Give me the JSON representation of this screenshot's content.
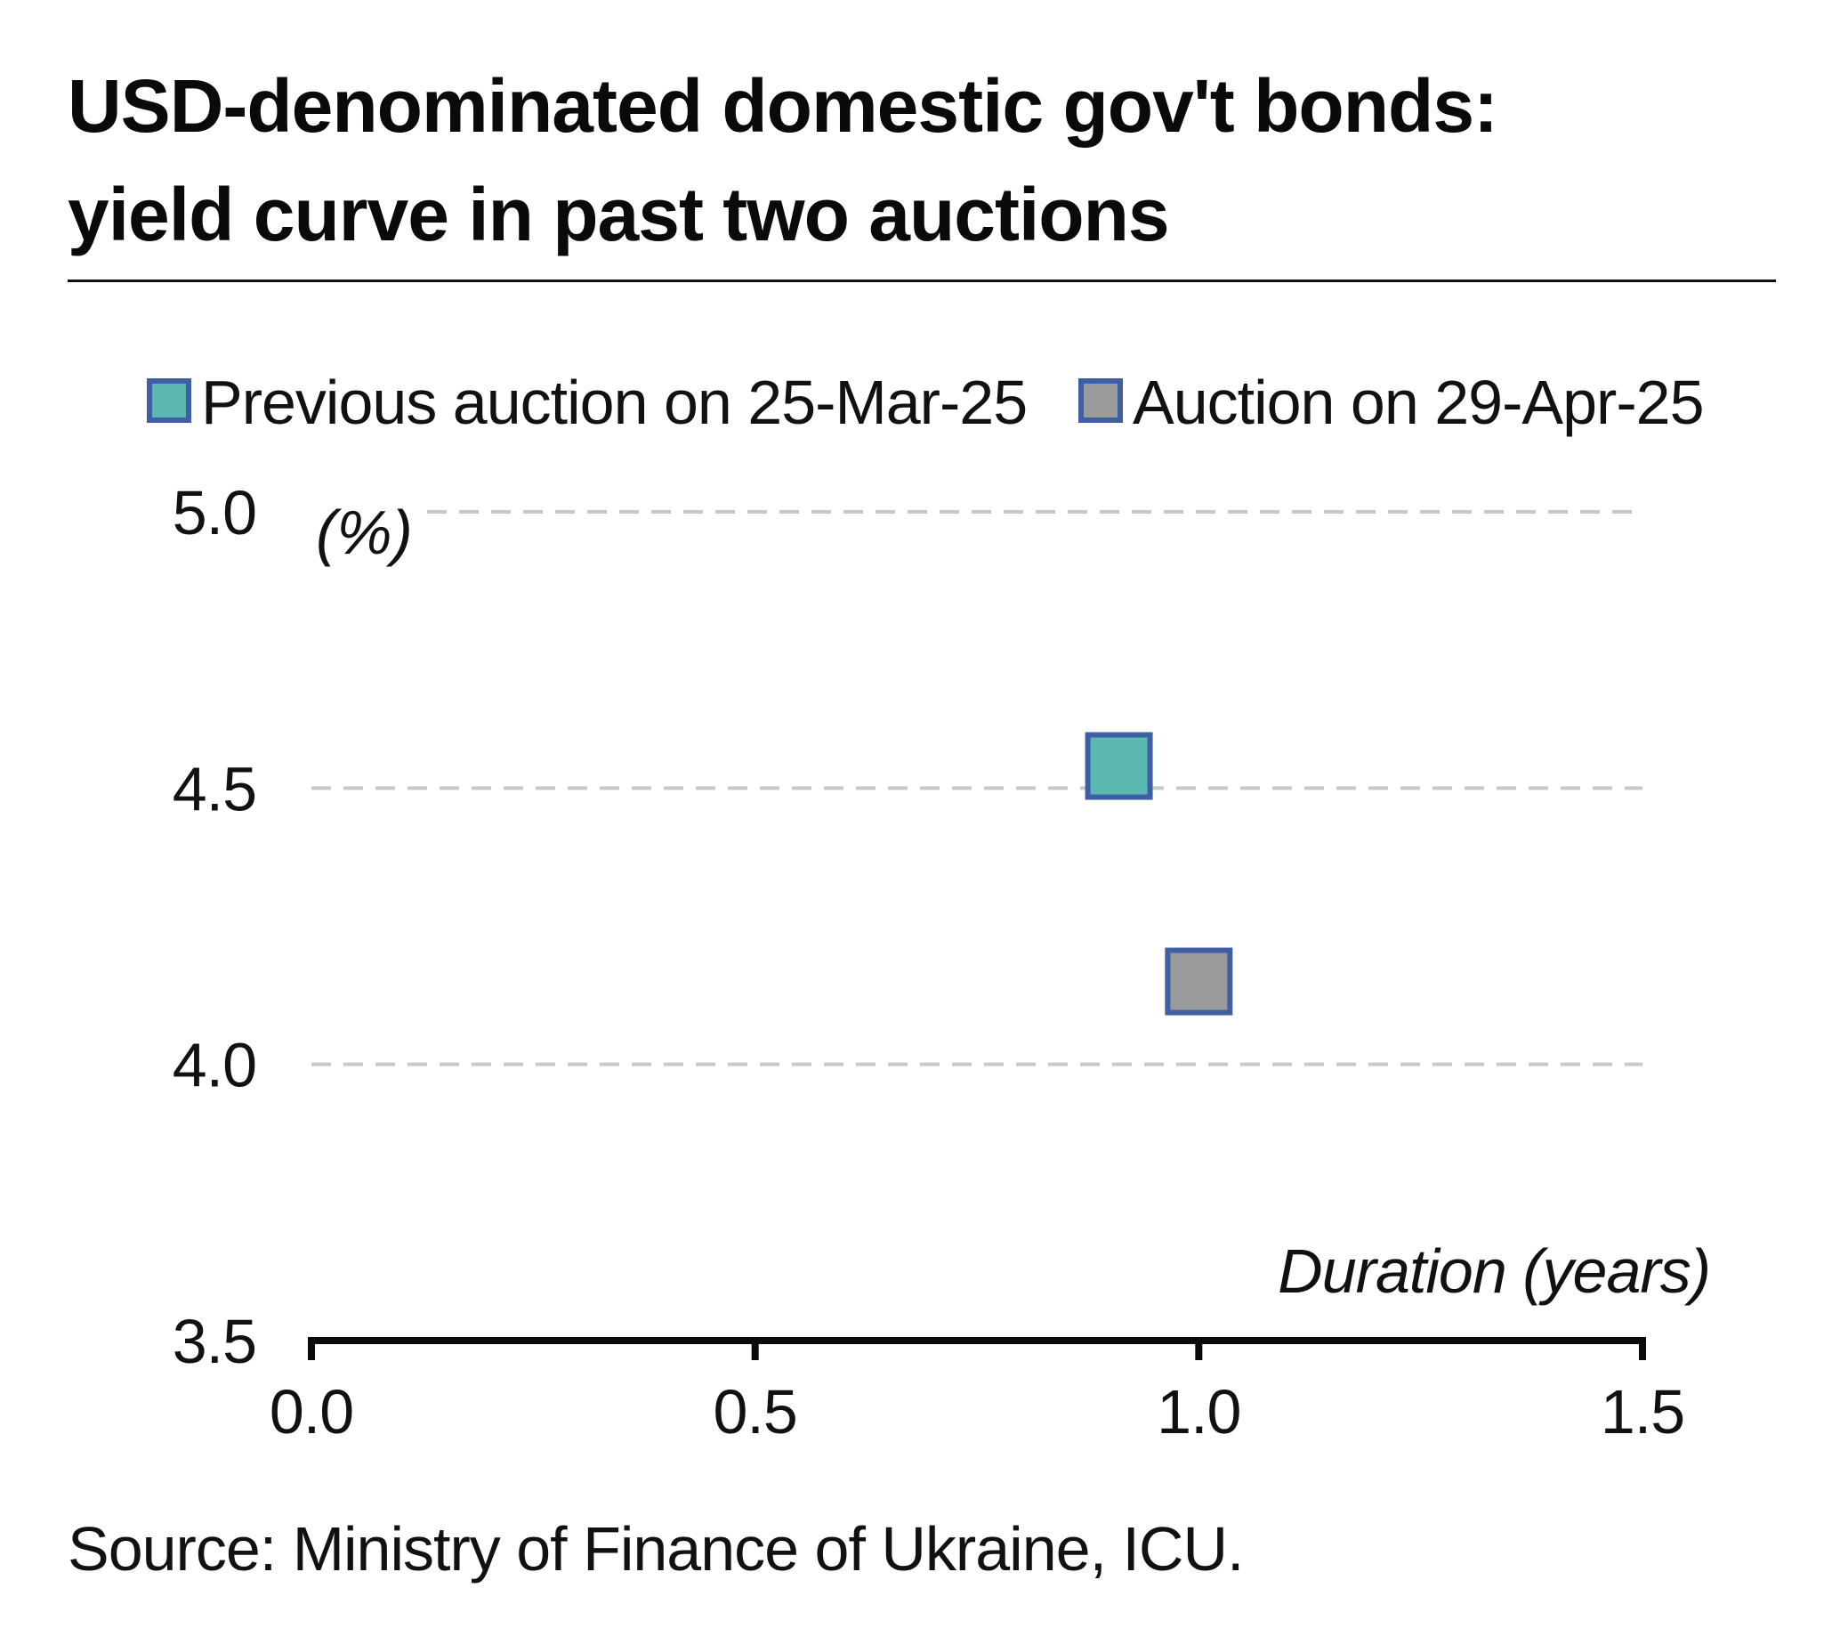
{
  "title_lines": [
    "USD-denominated domestic gov't bonds:",
    "yield curve in past two auctions"
  ],
  "source": "Source: Ministry of Finance of Ukraine, ICU.",
  "chart_data": {
    "type": "scatter",
    "xlabel": "Duration (years)",
    "ylabel": "(%)",
    "xlim": [
      0.0,
      1.5
    ],
    "ylim": [
      3.5,
      5.0
    ],
    "x_ticks": [
      "0.0",
      "0.5",
      "1.0",
      "1.5"
    ],
    "y_ticks": [
      "5.0",
      "4.5",
      "4.0",
      "3.5"
    ],
    "grid": "horizontal dashed",
    "legend_position": "top",
    "series": [
      {
        "name": "Previous auction on 25-Mar-25",
        "color": "#5BB8B0",
        "edge_color": "#3E5FA3",
        "points": [
          {
            "x": 0.91,
            "y": 4.54
          }
        ]
      },
      {
        "name": "Auction on 29-Apr-25",
        "color": "#9A9A9A",
        "edge_color": "#3E5FA3",
        "points": [
          {
            "x": 1.0,
            "y": 4.15
          }
        ]
      }
    ]
  }
}
